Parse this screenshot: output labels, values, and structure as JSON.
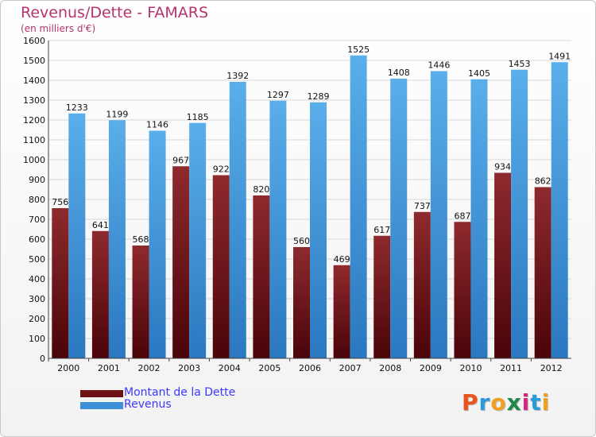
{
  "title": "Revenus/Dette - FAMARS",
  "subtitle": "(en milliers d'€)",
  "logo": "Proxiti",
  "colors": {
    "debt": "#7a1e22",
    "revenue": "#3d8fd6",
    "title": "#b5336e",
    "legend_text": "#3a3aff"
  },
  "legend": [
    {
      "name": "Montant de la Dette",
      "color": "#6b1014"
    },
    {
      "name": "Revenus",
      "color": "#3d8fd6"
    }
  ],
  "chart_data": {
    "type": "bar",
    "categories": [
      "2000",
      "2001",
      "2002",
      "2003",
      "2004",
      "2005",
      "2006",
      "2007",
      "2008",
      "2009",
      "2010",
      "2011",
      "2012"
    ],
    "series": [
      {
        "name": "Montant de la Dette",
        "values": [
          756,
          641,
          568,
          967,
          922,
          820,
          560,
          469,
          617,
          737,
          687,
          934,
          862
        ]
      },
      {
        "name": "Revenus",
        "values": [
          1233,
          1199,
          1146,
          1185,
          1392,
          1297,
          1289,
          1525,
          1408,
          1446,
          1405,
          1453,
          1491
        ]
      }
    ],
    "title": "Revenus/Dette - FAMARS",
    "ylim": [
      0,
      1600
    ],
    "yticks": [
      0,
      100,
      200,
      300,
      400,
      500,
      600,
      700,
      800,
      900,
      1000,
      1100,
      1200,
      1300,
      1400,
      1500,
      1600
    ],
    "grid": true,
    "legend_position": "bottom-left"
  }
}
